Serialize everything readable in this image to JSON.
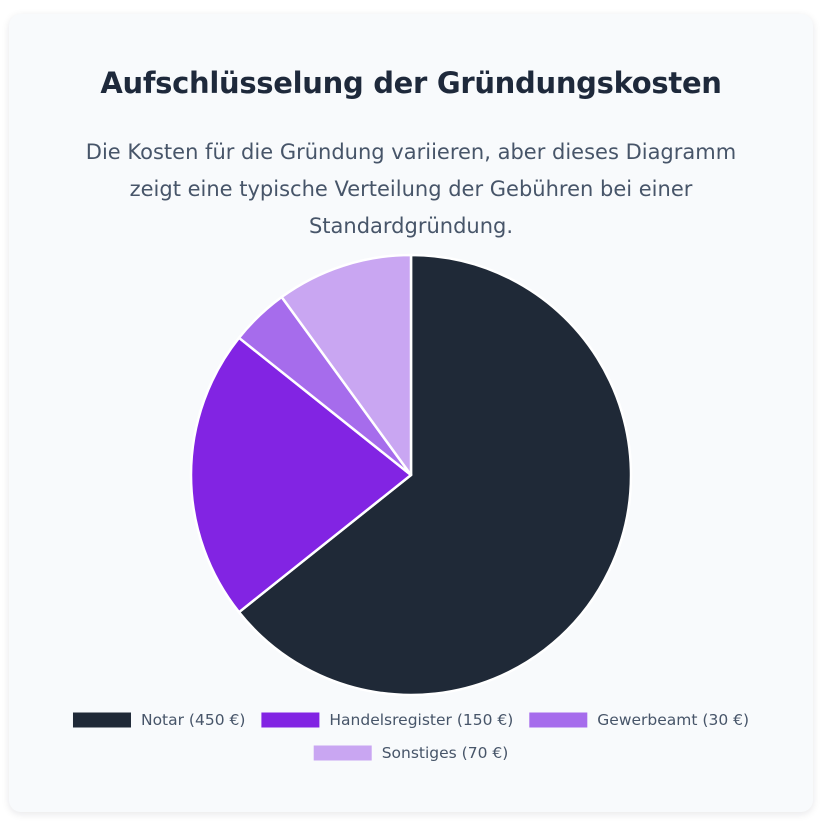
{
  "header": {
    "title": "Aufschlüsselung der Gründungskosten",
    "description": "Die Kosten für die Gründung variieren, aber dieses Diagramm zeigt eine typische Verteilung der Gebühren bei einer Standardgründung."
  },
  "chart_data": {
    "type": "pie",
    "title": "",
    "categories": [
      "Notar",
      "Handelsregister",
      "Gewerbeamt",
      "Sonstiges"
    ],
    "values": [
      450,
      150,
      30,
      70
    ],
    "unit": "€",
    "legend_labels": [
      "Notar (450 €)",
      "Handelsregister (150 €)",
      "Gewerbeamt (30 €)",
      "Sonstiges (70 €)"
    ],
    "colors": [
      "#1f2937",
      "#8224e3",
      "#a66cec",
      "#c9a6f2"
    ],
    "legend_position": "bottom",
    "start_angle": "top, clockwise"
  }
}
